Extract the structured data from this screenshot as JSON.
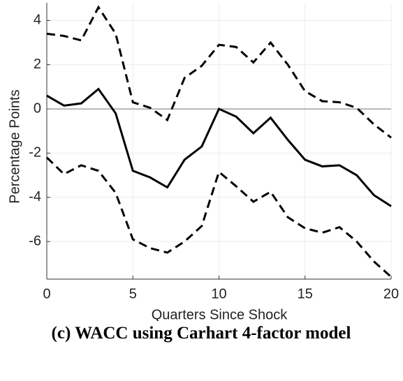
{
  "chart_data": {
    "type": "line",
    "x": [
      0,
      1,
      2,
      3,
      4,
      5,
      6,
      7,
      8,
      9,
      10,
      11,
      12,
      13,
      14,
      15,
      16,
      17,
      18,
      19,
      20
    ],
    "series": [
      {
        "color": "#000000",
        "style": "solid",
        "values": [
          0.6,
          0.15,
          0.25,
          0.9,
          -0.2,
          -2.8,
          -3.1,
          -3.55,
          -2.3,
          -1.7,
          0.0,
          -0.35,
          -1.1,
          -0.4,
          -1.4,
          -2.3,
          -2.6,
          -2.55,
          -3.0,
          -3.9,
          -4.4
        ]
      },
      {
        "color": "#000000",
        "style": "dashed",
        "values": [
          3.4,
          3.3,
          3.1,
          4.6,
          3.4,
          0.3,
          0.05,
          -0.5,
          1.4,
          1.95,
          2.9,
          2.8,
          2.1,
          3.0,
          2.0,
          0.8,
          0.35,
          0.3,
          0.05,
          -0.7,
          -1.3
        ]
      },
      {
        "color": "#000000",
        "style": "dashed",
        "values": [
          -2.2,
          -2.95,
          -2.55,
          -2.8,
          -3.8,
          -5.9,
          -6.3,
          -6.5,
          -6.0,
          -5.3,
          -2.85,
          -3.5,
          -4.2,
          -3.75,
          -4.9,
          -5.4,
          -5.6,
          -5.35,
          -6.0,
          -6.9,
          -7.6
        ]
      }
    ],
    "xlim": [
      0,
      20
    ],
    "xticks": [
      0,
      5,
      10,
      15,
      20
    ],
    "ylim": [
      -7.7,
      4.8
    ],
    "yticks": [
      -6,
      -4,
      -2,
      0,
      2,
      4
    ],
    "hline": 0,
    "grid": true,
    "xlabel": "Quarters Since Shock",
    "ylabel": "Percentage Points",
    "caption": "(c) WACC using Carhart 4-factor model"
  }
}
